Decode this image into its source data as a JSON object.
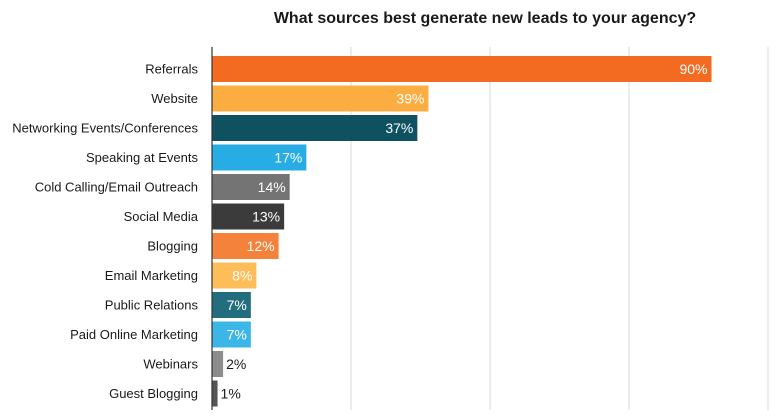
{
  "chart_data": {
    "type": "bar",
    "orientation": "horizontal",
    "title": "What sources best generate new leads to your agency?",
    "xlabel": "",
    "ylabel": "",
    "xlim": [
      0,
      100
    ],
    "grid": true,
    "value_suffix": "%",
    "categories": [
      "Referrals",
      "Website",
      "Networking Events/Conferences",
      "Speaking at Events",
      "Cold Calling/Email Outreach",
      "Social Media",
      "Blogging",
      "Email Marketing",
      "Public Relations",
      "Paid Online Marketing",
      "Webinars",
      "Guest Blogging"
    ],
    "values": [
      90,
      39,
      37,
      17,
      14,
      13,
      12,
      8,
      7,
      7,
      2,
      1
    ],
    "data_labels": [
      "90%",
      "39%",
      "37%",
      "17%",
      "14%",
      "13%",
      "12%",
      "8%",
      "7%",
      "7%",
      "2%",
      "1%"
    ],
    "colors": [
      "#f26b21",
      "#fbad41",
      "#0e5161",
      "#27ace4",
      "#747474",
      "#3b3b3b",
      "#f5823a",
      "#fdbd58",
      "#236e7e",
      "#3cb6e6",
      "#8c8c8c",
      "#555555"
    ]
  }
}
